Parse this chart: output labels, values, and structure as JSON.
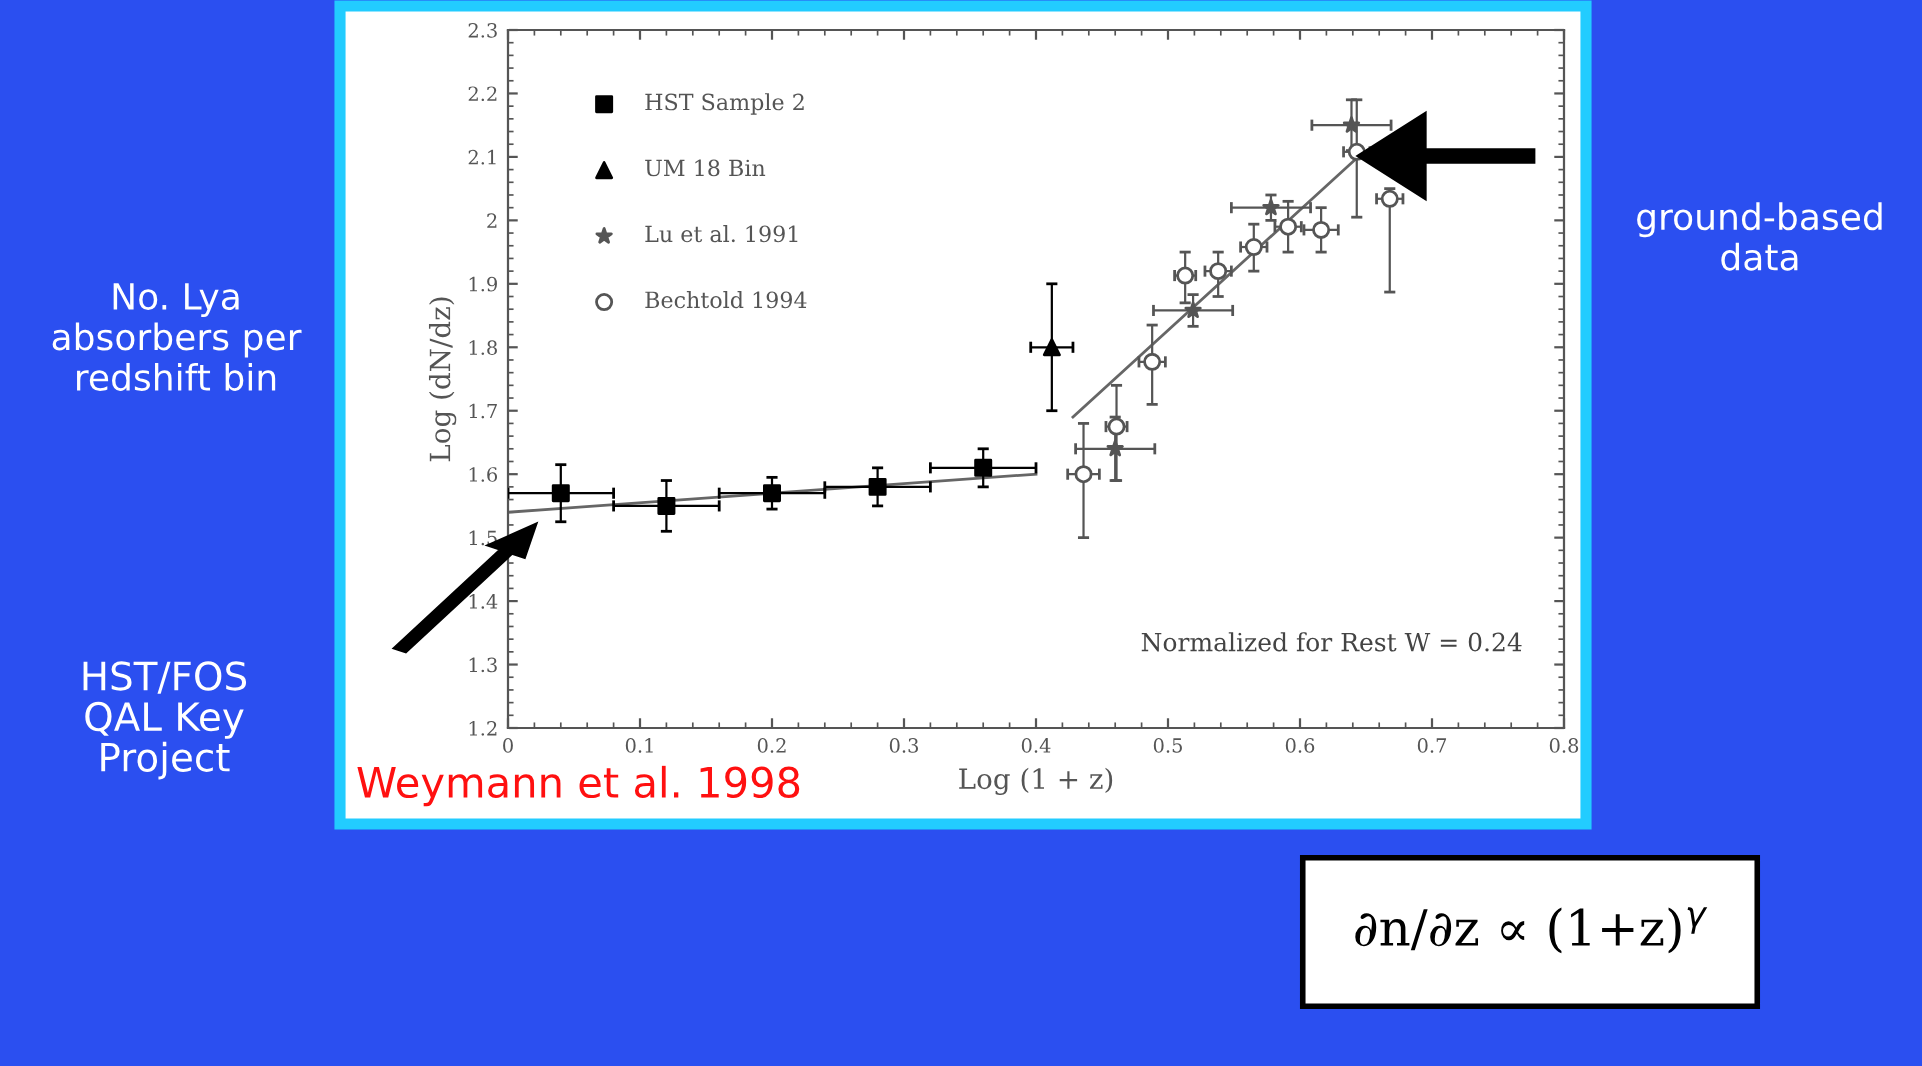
{
  "chart_data": {
    "type": "scatter",
    "xlabel": "Log (1 + z)",
    "ylabel": "Log (dN/dz)",
    "xlim": [
      0,
      0.8
    ],
    "xticks": [
      0,
      0.1,
      0.2,
      0.3,
      0.4,
      0.5,
      0.6,
      0.7,
      0.8
    ],
    "ylim": [
      1.2,
      2.3
    ],
    "yticks": [
      1.2,
      1.3,
      1.4,
      1.5,
      1.6,
      1.7,
      1.8,
      1.9,
      2,
      2.1,
      2.2,
      2.3
    ],
    "grid": false,
    "legend": "top left",
    "series": [
      {
        "name": "HST Sample 2",
        "color": "#000000",
        "marker": "square",
        "x": [
          0.04,
          0.12,
          0.2,
          0.28,
          0.36
        ],
        "values": [
          1.57,
          1.55,
          1.57,
          1.58,
          1.61
        ],
        "errors": [
          0.045,
          0.04,
          0.025,
          0.03,
          0.03
        ],
        "xerrors": [
          0.04,
          0.04,
          0.04,
          0.04,
          0.04
        ]
      },
      {
        "name": "UM 18 Bin",
        "color": "#000000",
        "marker": "triangle",
        "x": [
          0.412
        ],
        "values": [
          1.8
        ],
        "errors": [
          0.1
        ],
        "xerrors": [
          0.016
        ]
      },
      {
        "name": "Lu et al. 1991",
        "color": "#555555",
        "marker": "star",
        "x": [
          0.46,
          0.519,
          0.578,
          0.639
        ],
        "values": [
          1.64,
          1.858,
          2.02,
          2.15
        ],
        "errors": [
          0.05,
          0.025,
          0.02,
          0.04
        ],
        "xerrors": [
          0.03,
          0.03,
          0.03,
          0.03
        ]
      },
      {
        "name": "Bechtold 1994",
        "color": "#555555",
        "marker": "circle",
        "x": [
          0.436,
          0.461,
          0.488,
          0.513,
          0.538,
          0.565,
          0.591,
          0.616,
          0.643,
          0.668
        ],
        "values": [
          1.6,
          1.675,
          1.777,
          1.913,
          1.92,
          1.958,
          1.99,
          1.985,
          2.108,
          2.034
        ],
        "errors": [
          [
            1.5,
            1.68
          ],
          [
            1.59,
            1.74
          ],
          [
            1.71,
            1.835
          ],
          [
            1.87,
            1.95
          ],
          [
            1.88,
            1.95
          ],
          [
            1.92,
            1.994
          ],
          [
            1.95,
            2.03
          ],
          [
            1.95,
            2.02
          ],
          [
            2.005,
            2.19
          ],
          [
            1.887,
            2.05
          ]
        ],
        "xerrors": [
          0.012,
          0.008,
          0.01,
          0.008,
          0.01,
          0.01,
          0.01,
          0.013,
          0.01,
          0.01
        ]
      },
      {
        "type": "line",
        "color": "#666666",
        "x": [
          0,
          0.4
        ],
        "values": [
          1.54,
          1.6
        ]
      },
      {
        "type": "line",
        "color": "#666666",
        "x": [
          0.428,
          0.644
        ],
        "values": [
          1.69,
          2.1
        ]
      }
    ],
    "annotations": [
      "Normalized for Rest W = 0.24",
      "Weymann et al. 1998",
      "No. Lya absorbers per redshift bin",
      "HST/FOS QAL Key Project",
      "ground-based data",
      "∂n/∂z ∝ (1+z)$^{γ}$"
    ]
  }
}
